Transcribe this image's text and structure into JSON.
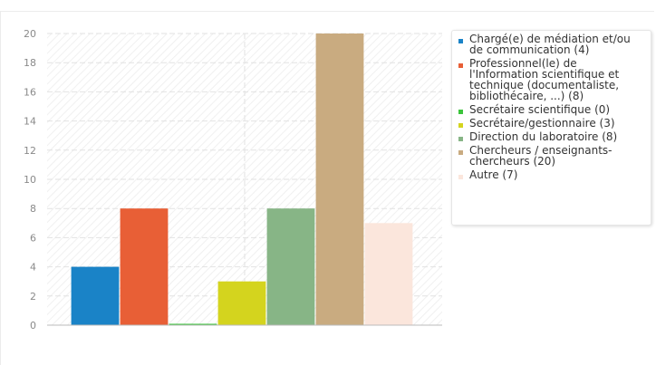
{
  "chart_data": {
    "type": "bar",
    "title": "",
    "xlabel": "",
    "ylabel": "",
    "ylim": [
      0,
      20
    ],
    "yticks": [
      "0",
      "2",
      "4",
      "6",
      "8",
      "10",
      "12",
      "14",
      "16",
      "18",
      "20"
    ],
    "grid": true,
    "legend_position": "right",
    "series": [
      {
        "name": "Chargé(e) de médiation et/ou de communication (4)",
        "value": 4,
        "color": "#1a83c7"
      },
      {
        "name": "Professionnel(le) de l'Information scientifique et technique (documentaliste, bibliothécaire, ...) (8)",
        "value": 8,
        "color": "#e85f36"
      },
      {
        "name": "Secrétaire scientifique (0)",
        "value": 0,
        "color": "#3bc43b"
      },
      {
        "name": "Secrétaire/gestionnaire (3)",
        "value": 3,
        "color": "#d4d41e"
      },
      {
        "name": "Direction du laboratoire (8)",
        "value": 8,
        "color": "#87b586"
      },
      {
        "name": "Chercheurs / enseignants-chercheurs (20)",
        "value": 20,
        "color": "#c9ab80"
      },
      {
        "name": "Autre (7)",
        "value": 7,
        "color": "#fbe6dc"
      }
    ]
  }
}
